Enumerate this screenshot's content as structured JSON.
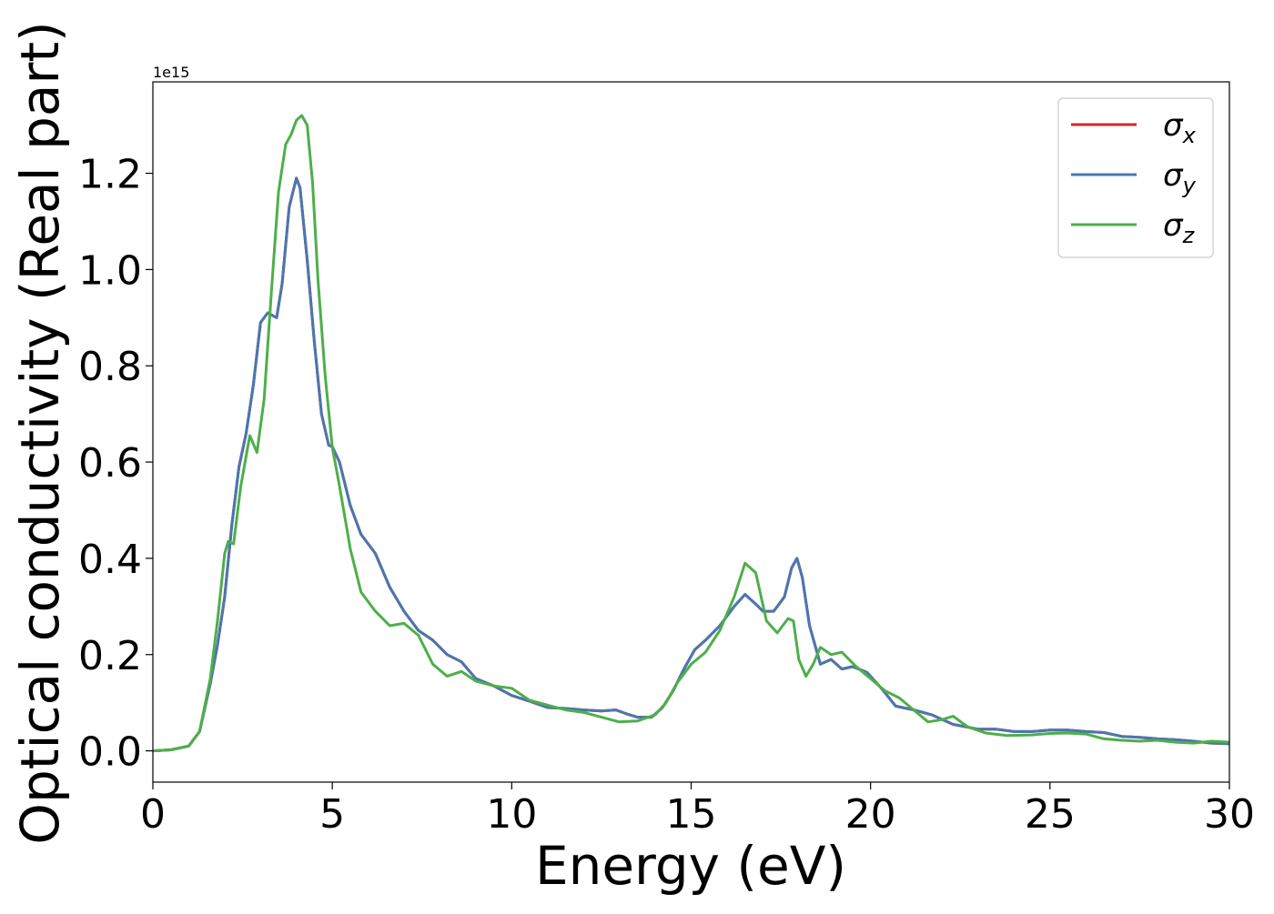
{
  "chart_data": {
    "type": "line",
    "title": "",
    "xlabel": "Energy (eV)",
    "ylabel": "Optical conductivity (Real part)",
    "y_offset_label": "1e15",
    "xlim": [
      0,
      30
    ],
    "ylim": [
      -0.065,
      1.39
    ],
    "xticks": [
      0,
      5,
      10,
      15,
      20,
      25,
      30
    ],
    "yticks": [
      0.0,
      0.2,
      0.4,
      0.6,
      0.8,
      1.0,
      1.2
    ],
    "xtick_labels": [
      "0",
      "5",
      "10",
      "15",
      "20",
      "25",
      "30"
    ],
    "ytick_labels": [
      "0.0",
      "0.2",
      "0.4",
      "0.6",
      "0.8",
      "1.0",
      "1.2"
    ],
    "grid": false,
    "legend_position": "top-right",
    "series": [
      {
        "name": "σx",
        "symbol": "σ",
        "subscript": "x",
        "color": "#d62728",
        "x": [
          0,
          0.5,
          1.0,
          1.3,
          1.6,
          1.8,
          2.0,
          2.2,
          2.4,
          2.6,
          2.8,
          3.0,
          3.2,
          3.45,
          3.6,
          3.8,
          4.0,
          4.1,
          4.3,
          4.5,
          4.7,
          4.9,
          5.0,
          5.2,
          5.5,
          5.8,
          6.2,
          6.6,
          7.0,
          7.4,
          7.8,
          8.2,
          8.6,
          9.0,
          9.5,
          10.0,
          10.5,
          11.0,
          11.5,
          12.0,
          12.5,
          12.9,
          13.2,
          13.5,
          13.9,
          14.2,
          14.5,
          14.8,
          15.1,
          15.4,
          15.8,
          16.2,
          16.5,
          16.8,
          17.0,
          17.3,
          17.6,
          17.8,
          17.95,
          18.1,
          18.3,
          18.6,
          18.9,
          19.2,
          19.5,
          19.9,
          20.3,
          20.7,
          21.2,
          21.7,
          22.3,
          23.0,
          23.5,
          24.0,
          24.5,
          25.0,
          25.5,
          26.0,
          26.5,
          27.0,
          27.5,
          28.0,
          28.5,
          29.0,
          29.5,
          30.0
        ],
        "values": [
          0.0,
          0.002,
          0.01,
          0.04,
          0.14,
          0.22,
          0.32,
          0.47,
          0.59,
          0.66,
          0.76,
          0.89,
          0.91,
          0.9,
          0.97,
          1.13,
          1.19,
          1.17,
          1.02,
          0.85,
          0.7,
          0.635,
          0.632,
          0.6,
          0.51,
          0.45,
          0.41,
          0.34,
          0.29,
          0.25,
          0.23,
          0.2,
          0.185,
          0.15,
          0.135,
          0.115,
          0.103,
          0.09,
          0.088,
          0.085,
          0.083,
          0.085,
          0.077,
          0.07,
          0.07,
          0.09,
          0.125,
          0.17,
          0.21,
          0.23,
          0.26,
          0.3,
          0.325,
          0.305,
          0.29,
          0.29,
          0.32,
          0.38,
          0.4,
          0.36,
          0.26,
          0.18,
          0.19,
          0.17,
          0.175,
          0.163,
          0.13,
          0.093,
          0.085,
          0.075,
          0.055,
          0.045,
          0.045,
          0.04,
          0.04,
          0.043,
          0.043,
          0.04,
          0.038,
          0.03,
          0.028,
          0.025,
          0.023,
          0.02,
          0.016,
          0.015
        ]
      },
      {
        "name": "σy",
        "symbol": "σ",
        "subscript": "y",
        "color": "#4a77b0",
        "x": [
          0,
          0.5,
          1.0,
          1.3,
          1.6,
          1.8,
          2.0,
          2.2,
          2.4,
          2.6,
          2.8,
          3.0,
          3.2,
          3.45,
          3.6,
          3.8,
          4.0,
          4.1,
          4.3,
          4.5,
          4.7,
          4.9,
          5.0,
          5.2,
          5.5,
          5.8,
          6.2,
          6.6,
          7.0,
          7.4,
          7.8,
          8.2,
          8.6,
          9.0,
          9.5,
          10.0,
          10.5,
          11.0,
          11.5,
          12.0,
          12.5,
          12.9,
          13.2,
          13.5,
          13.9,
          14.2,
          14.5,
          14.8,
          15.1,
          15.4,
          15.8,
          16.2,
          16.5,
          16.8,
          17.0,
          17.3,
          17.6,
          17.8,
          17.95,
          18.1,
          18.3,
          18.6,
          18.9,
          19.2,
          19.5,
          19.9,
          20.3,
          20.7,
          21.2,
          21.7,
          22.3,
          23.0,
          23.5,
          24.0,
          24.5,
          25.0,
          25.5,
          26.0,
          26.5,
          27.0,
          27.5,
          28.0,
          28.5,
          29.0,
          29.5,
          30.0
        ],
        "values": [
          0.0,
          0.002,
          0.01,
          0.04,
          0.14,
          0.22,
          0.32,
          0.47,
          0.59,
          0.66,
          0.76,
          0.89,
          0.91,
          0.9,
          0.97,
          1.13,
          1.19,
          1.17,
          1.02,
          0.85,
          0.7,
          0.635,
          0.632,
          0.6,
          0.51,
          0.45,
          0.41,
          0.34,
          0.29,
          0.25,
          0.23,
          0.2,
          0.185,
          0.15,
          0.135,
          0.115,
          0.103,
          0.09,
          0.088,
          0.085,
          0.083,
          0.085,
          0.077,
          0.07,
          0.07,
          0.09,
          0.125,
          0.17,
          0.21,
          0.23,
          0.26,
          0.3,
          0.325,
          0.305,
          0.29,
          0.29,
          0.32,
          0.38,
          0.4,
          0.36,
          0.26,
          0.18,
          0.19,
          0.17,
          0.175,
          0.163,
          0.13,
          0.093,
          0.085,
          0.075,
          0.055,
          0.045,
          0.045,
          0.04,
          0.04,
          0.043,
          0.043,
          0.04,
          0.038,
          0.03,
          0.028,
          0.025,
          0.023,
          0.02,
          0.016,
          0.015
        ]
      },
      {
        "name": "σz",
        "symbol": "σ",
        "subscript": "z",
        "color": "#4daf4a",
        "x": [
          0,
          0.5,
          1.0,
          1.3,
          1.6,
          1.8,
          2.0,
          2.1,
          2.25,
          2.45,
          2.7,
          2.9,
          3.1,
          3.3,
          3.5,
          3.7,
          3.85,
          4.0,
          4.15,
          4.3,
          4.45,
          4.6,
          4.8,
          5.0,
          5.2,
          5.5,
          5.8,
          6.2,
          6.6,
          7.0,
          7.4,
          7.8,
          8.2,
          8.6,
          9.0,
          9.5,
          10.0,
          10.5,
          11.0,
          11.5,
          12.0,
          12.5,
          13.0,
          13.5,
          14.0,
          14.3,
          14.6,
          15.0,
          15.4,
          15.8,
          16.2,
          16.5,
          16.8,
          17.1,
          17.4,
          17.7,
          17.85,
          18.0,
          18.2,
          18.4,
          18.6,
          18.9,
          19.2,
          19.4,
          19.6,
          20.0,
          20.4,
          20.8,
          21.2,
          21.6,
          22.0,
          22.3,
          22.7,
          23.2,
          23.8,
          24.5,
          25.0,
          25.5,
          26.0,
          26.5,
          27.0,
          27.5,
          28.0,
          28.5,
          29.0,
          29.5,
          30.0
        ],
        "values": [
          0.0,
          0.002,
          0.01,
          0.04,
          0.15,
          0.27,
          0.41,
          0.435,
          0.43,
          0.55,
          0.655,
          0.62,
          0.73,
          0.95,
          1.16,
          1.26,
          1.28,
          1.31,
          1.32,
          1.3,
          1.18,
          0.98,
          0.78,
          0.63,
          0.55,
          0.42,
          0.33,
          0.29,
          0.26,
          0.265,
          0.24,
          0.18,
          0.155,
          0.165,
          0.145,
          0.135,
          0.13,
          0.105,
          0.095,
          0.085,
          0.08,
          0.07,
          0.06,
          0.062,
          0.075,
          0.1,
          0.14,
          0.18,
          0.205,
          0.25,
          0.32,
          0.39,
          0.37,
          0.27,
          0.245,
          0.275,
          0.27,
          0.19,
          0.155,
          0.18,
          0.215,
          0.2,
          0.205,
          0.19,
          0.175,
          0.15,
          0.125,
          0.11,
          0.085,
          0.06,
          0.065,
          0.072,
          0.05,
          0.037,
          0.032,
          0.033,
          0.036,
          0.037,
          0.035,
          0.025,
          0.022,
          0.02,
          0.022,
          0.018,
          0.016,
          0.02,
          0.018
        ]
      }
    ]
  }
}
